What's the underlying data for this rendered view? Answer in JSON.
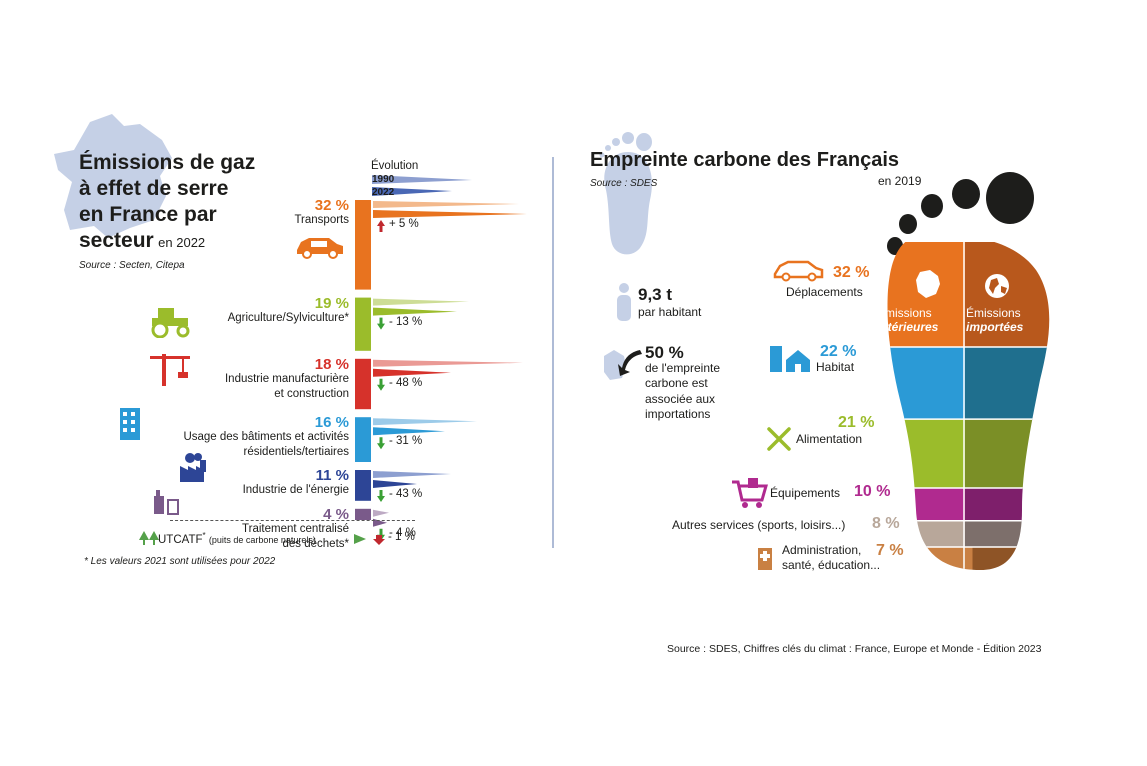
{
  "left": {
    "title_lines": [
      "Émissions de gaz",
      "à effet de serre",
      "en France par"
    ],
    "title_last": "secteur",
    "title_year": "en 2022",
    "source": "Source : Secten, Citepa",
    "evolution_label": "Évolution",
    "year_1990": "1990",
    "year_2022": "2022",
    "footnote": "* Les valeurs 2021 sont utilisées pour 2022",
    "utcatf_label": "UTCATF",
    "utcatf_star": "*",
    "utcatf_note": "(puits de carbone naturels)",
    "utcatf_change": "- 1 %"
  },
  "right": {
    "title": "Empreinte carbone des Français",
    "source": "Source : SDES",
    "year": "en 2019",
    "per_capita_value": "9,3 t",
    "per_capita_label": "par habitant",
    "imports_value": "50 %",
    "imports_lines": [
      "de l'empreinte",
      "carbone est",
      "associée aux",
      "importations"
    ],
    "interior_1": "Émissions",
    "interior_2": "intérieures",
    "imported_1": "Émissions",
    "imported_2": "importées"
  },
  "bottom_source": "Source : SDES, Chiffres clés du climat : France, Europe et Monde - Édition 2023",
  "colors": {
    "transports": "#e8731f",
    "agriculture": "#9bbc2b",
    "industrie": "#d6322b",
    "batiments": "#2b9ad6",
    "energie": "#2d4596",
    "dechets": "#7a5a8a",
    "utcatf": "#55a14a",
    "up_arrow": "#c0282e",
    "down_arrow": "#3aa035",
    "france_map": "#c5d0e6",
    "footprint_light": "#c5d0e6",
    "toe": "#1d1d1b"
  },
  "chart_data": [
    {
      "type": "bar",
      "title": "Émissions de gaz à effet de serre en France par secteur en 2022",
      "categories": [
        "Transports",
        "Agriculture/Sylviculture*",
        "Industrie manufacturière et construction",
        "Usage des bâtiments et activités résidentiels/tertiaires",
        "Industrie de l'énergie",
        "Traitement centralisé des déchets*"
      ],
      "labels": [
        "Transports",
        "Agriculture/Sylviculture*",
        "Industrie manufacturière|et construction",
        "Usage des bâtiments et activités|résidentiels/tertiaires",
        "Industrie de l'énergie",
        "Traitement centralisé|des déchets*"
      ],
      "share_labels": [
        "32 %",
        "19 %",
        "18 %",
        "16 %",
        "11 %",
        "4 %"
      ],
      "series": [
        {
          "name": "part en 2022 (%)",
          "values": [
            32,
            19,
            18,
            16,
            11,
            4
          ]
        },
        {
          "name": "1990 (relatif)",
          "values": [
            0.73,
            0.48,
            0.75,
            0.52,
            0.39,
            0.08
          ]
        },
        {
          "name": "2022 (relatif)",
          "values": [
            0.77,
            0.42,
            0.39,
            0.36,
            0.22,
            0.07
          ]
        }
      ],
      "evolution_labels": [
        "+ 5 %",
        "- 13 %",
        "- 48 %",
        "- 31 %",
        "- 43 %",
        "- 4 %"
      ],
      "evolution_direction": [
        "up",
        "down",
        "down",
        "down",
        "down",
        "down"
      ]
    },
    {
      "type": "bar",
      "title": "Empreinte carbone des Français",
      "categories": [
        "Déplacements",
        "Habitat",
        "Alimentation",
        "Équipements",
        "Autres services (sports, loisirs...)",
        "Administration, santé, éducation..."
      ],
      "labels": [
        "Déplacements",
        "Habitat",
        "Alimentation",
        "Équipements",
        "Autres services (sports, loisirs...)",
        "Administration,|santé, éducation..."
      ],
      "share_labels": [
        "32 %",
        "22 %",
        "21 %",
        "10 %",
        "8 %",
        "7 %"
      ],
      "values": [
        32,
        22,
        21,
        10,
        8,
        7
      ],
      "colors_interior": [
        "#e8731f",
        "#2b9ad6",
        "#9bbc2b",
        "#b02a8f",
        "#b8a79a",
        "#c98043"
      ],
      "colors_imported": [
        "#b8581c",
        "#1f6f8e",
        "#7b8f26",
        "#7e1f6b",
        "#7d6f6b",
        "#8e5426"
      ]
    }
  ]
}
